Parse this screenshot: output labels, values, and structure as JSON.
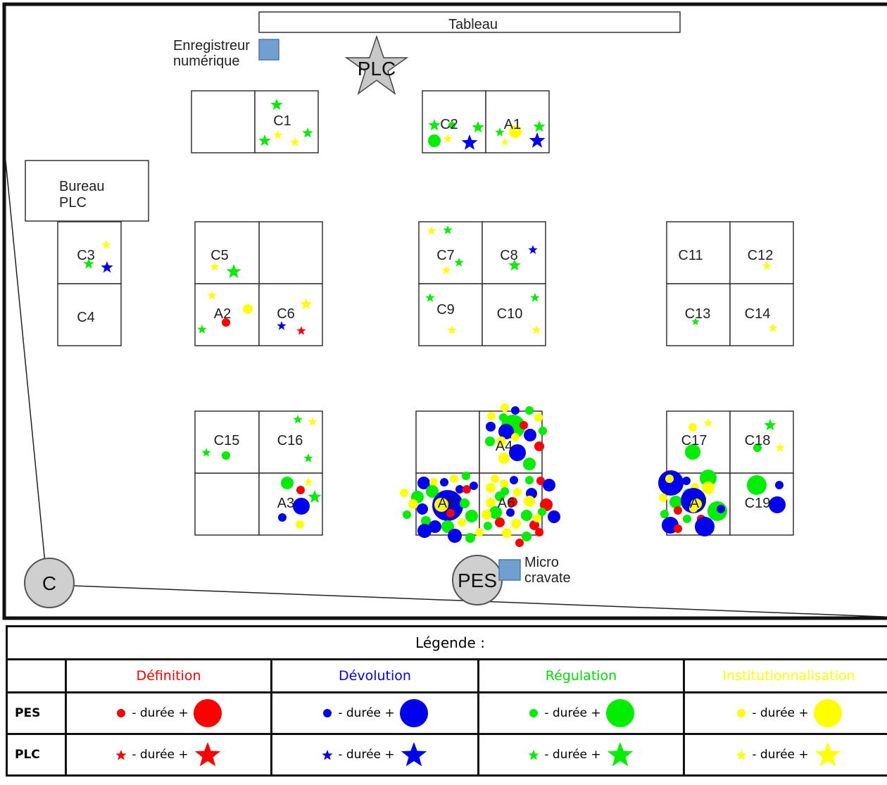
{
  "board": {
    "label": "Tableau"
  },
  "recorder": {
    "label_line1": "Enregistreur",
    "label_line2": "numérique"
  },
  "teacher_star": {
    "label": "PLC"
  },
  "office": {
    "label_line1": "Bureau",
    "label_line2": "PLC"
  },
  "micro": {
    "label_line1": "Micro",
    "label_line2": "cravate"
  },
  "pes": {
    "label": "PES"
  },
  "camera": {
    "label": "C"
  },
  "desks": [
    "C1",
    "C2",
    "A1",
    "C3",
    "C4",
    "C5",
    "A2",
    "C6",
    "C7",
    "C8",
    "C9",
    "C10",
    "C11",
    "C12",
    "C13",
    "C14",
    "C15",
    "C16",
    "A3",
    "A4",
    "A5",
    "A6",
    "C17",
    "C18",
    "A7",
    "C19"
  ],
  "legend": {
    "title": "Légende :",
    "columns": [
      "Définition",
      "Dévolution",
      "Régulation",
      "Institutionnalisation"
    ],
    "colors": [
      "#ff0000",
      "#0000ee",
      "#00ee00",
      "#ffff00"
    ],
    "rows": [
      "PES",
      "PLC"
    ],
    "duration_text": "- durée +"
  }
}
